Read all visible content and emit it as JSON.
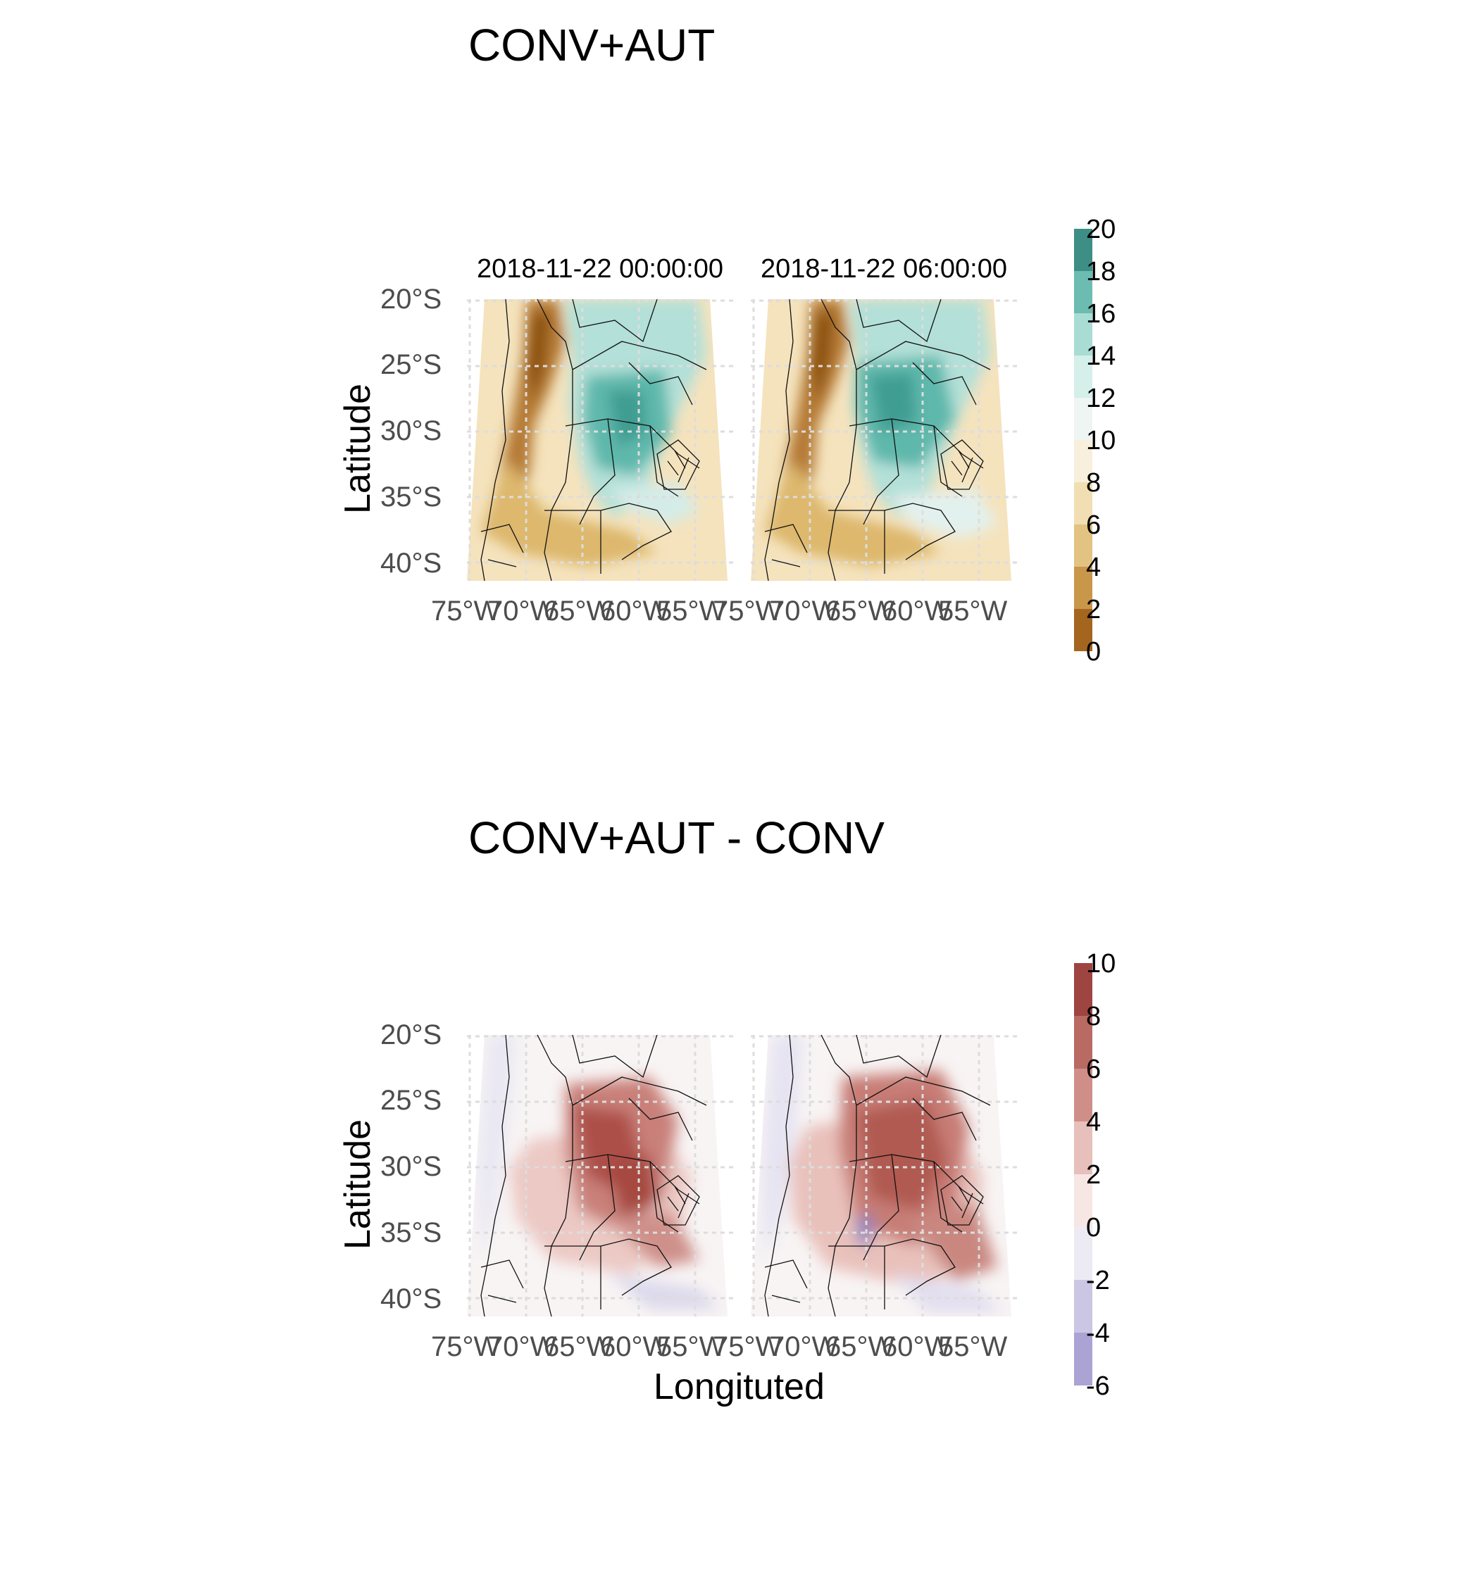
{
  "plots": [
    {
      "title": "CONV+AUT",
      "ylabel": "Latitude",
      "xlabel": "",
      "facets": [
        "2018-11-22 00:00:00",
        "2018-11-22 06:00:00"
      ],
      "yticks": [
        "20°S",
        "25°S",
        "30°S",
        "35°S",
        "40°S"
      ],
      "xticks": [
        "75°W",
        "70°W",
        "65°W",
        "60°W",
        "55°W"
      ],
      "legend": {
        "ticks": [
          "20",
          "18",
          "16",
          "14",
          "12",
          "10",
          "8",
          "6",
          "4",
          "2",
          "0"
        ],
        "colors": [
          "#35978f",
          "#80cdc1",
          "#c7eae5",
          "#f5f5f5",
          "#f6e8c3",
          "#dfc27d",
          "#bf812d",
          "#8c510a"
        ],
        "bins": [
          "#3d8f86",
          "#6cbcb1",
          "#a9ddd3",
          "#d5efea",
          "#eef5f3",
          "#f8efdc",
          "#f1dfb3",
          "#e2c382",
          "#c9974a",
          "#a4651f"
        ]
      }
    },
    {
      "title": "CONV+AUT - CONV",
      "ylabel": "Latitude",
      "xlabel": "Longituted",
      "facets": [
        "",
        ""
      ],
      "yticks": [
        "20°S",
        "25°S",
        "30°S",
        "35°S",
        "40°S"
      ],
      "xticks": [
        "75°W",
        "70°W",
        "65°W",
        "60°W",
        "55°W"
      ],
      "legend": {
        "ticks": [
          "10",
          "8",
          "6",
          "4",
          "2",
          "0",
          "-2",
          "-4",
          "-6"
        ],
        "colors": [
          "#b2182b",
          "#f4a582",
          "#f7f7f7",
          "#998ec3"
        ],
        "bins": [
          "#9e4441",
          "#b86a63",
          "#cf8f88",
          "#e7c0bb",
          "#f6e6e4",
          "#ecebf4",
          "#cbc6e3",
          "#aaa3d4"
        ]
      }
    }
  ]
}
